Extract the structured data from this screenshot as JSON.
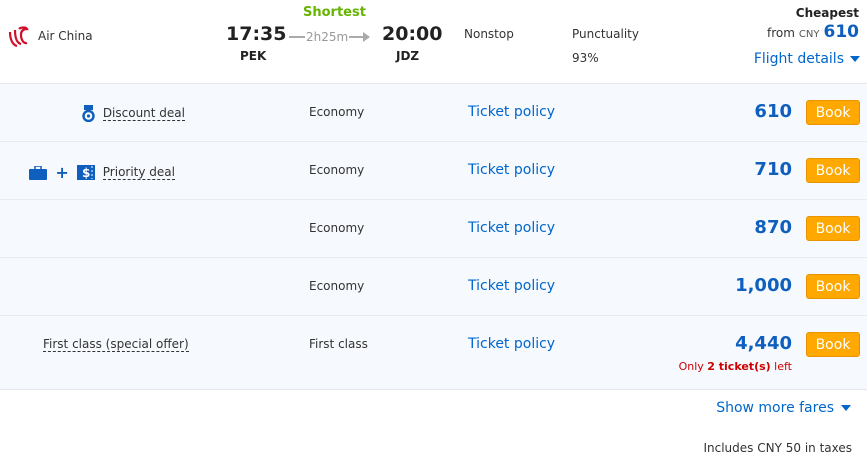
{
  "flight": {
    "airline": "Air China",
    "badge": "Shortest",
    "dep_time": "17:35",
    "dep_airport": "PEK",
    "duration": "2h25m",
    "arr_time": "20:00",
    "arr_airport": "JDZ",
    "stops": "Nonstop",
    "punctuality_label": "Punctuality",
    "punctuality": "93%",
    "cheapest_label": "Cheapest",
    "from_label": "from",
    "currency": "CNY",
    "from_price": "610",
    "details_label": "Flight details"
  },
  "fares": [
    {
      "deal": "Discount deal",
      "icon": "medal-icon",
      "cabin": "Economy",
      "policy": "Ticket policy",
      "price": "610",
      "book": "Book"
    },
    {
      "deal": "Priority deal",
      "icon": "luggage-plus-dollar-icon",
      "plus": "+",
      "cabin": "Economy",
      "policy": "Ticket policy",
      "price": "710",
      "book": "Book"
    },
    {
      "deal": "",
      "cabin": "Economy",
      "policy": "Ticket policy",
      "price": "870",
      "book": "Book"
    },
    {
      "deal": "",
      "cabin": "Economy",
      "policy": "Ticket policy",
      "price": "1,000",
      "book": "Book"
    },
    {
      "deal": "First class (special offer)",
      "cabin": "First class",
      "policy": "Ticket policy",
      "price": "4,440",
      "book": "Book",
      "left_pre": "Only",
      "left_count": "2 ticket(s)",
      "left_post": "left"
    }
  ],
  "footer": {
    "more": "Show more fares",
    "taxes": "Includes CNY 50 in taxes"
  },
  "colors": {
    "accent": "#0f5fbf",
    "book": "#ffa800",
    "shortest": "#66b300",
    "warning": "#cc0000"
  }
}
